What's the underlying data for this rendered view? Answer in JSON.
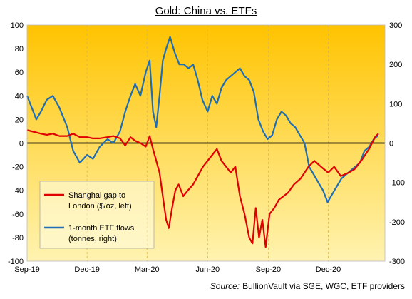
{
  "chart_data": {
    "type": "line",
    "title": "Gold: China vs. ETFs",
    "source": "BullionVault via SGE, WGC, ETF providers",
    "source_prefix": "Source:",
    "x_ticks": [
      "Sep-19",
      "Dec-19",
      "Mar-20",
      "Jun-20",
      "Sep-20",
      "Dec-20"
    ],
    "x_range": [
      "2019-09-01",
      "2021-02-25"
    ],
    "y_left": {
      "ylim": [
        -100,
        100
      ],
      "ticks": [
        -100,
        -80,
        -60,
        -40,
        -20,
        0,
        20,
        40,
        60,
        80,
        100
      ]
    },
    "y_right": {
      "ylim": [
        -300,
        300
      ],
      "ticks": [
        -300,
        -200,
        -100,
        0,
        100,
        200,
        300
      ]
    },
    "legend_placement": "bottom-left",
    "grid": "vertical",
    "background_gradient": [
      "#ffc300",
      "#fff3b0"
    ],
    "series": [
      {
        "name_line1": "Shanghai gap to",
        "name_line2": "London ($/oz, left)",
        "axis": "left",
        "color": "#e00000",
        "points": [
          [
            "2019-09-01",
            11
          ],
          [
            "2019-09-08",
            10
          ],
          [
            "2019-09-15",
            9
          ],
          [
            "2019-09-22",
            8
          ],
          [
            "2019-10-01",
            7
          ],
          [
            "2019-10-10",
            8
          ],
          [
            "2019-10-20",
            6
          ],
          [
            "2019-11-01",
            6
          ],
          [
            "2019-11-10",
            8
          ],
          [
            "2019-11-20",
            5
          ],
          [
            "2019-12-01",
            5
          ],
          [
            "2019-12-10",
            4
          ],
          [
            "2019-12-20",
            4
          ],
          [
            "2020-01-01",
            5
          ],
          [
            "2020-01-10",
            6
          ],
          [
            "2020-01-20",
            4
          ],
          [
            "2020-01-28",
            -2
          ],
          [
            "2020-02-05",
            5
          ],
          [
            "2020-02-12",
            2
          ],
          [
            "2020-02-20",
            0
          ],
          [
            "2020-02-28",
            -3
          ],
          [
            "2020-03-05",
            6
          ],
          [
            "2020-03-10",
            -5
          ],
          [
            "2020-03-15",
            -15
          ],
          [
            "2020-03-20",
            -25
          ],
          [
            "2020-03-25",
            -45
          ],
          [
            "2020-03-30",
            -65
          ],
          [
            "2020-04-03",
            -72
          ],
          [
            "2020-04-08",
            -55
          ],
          [
            "2020-04-13",
            -40
          ],
          [
            "2020-04-18",
            -35
          ],
          [
            "2020-04-25",
            -45
          ],
          [
            "2020-05-02",
            -40
          ],
          [
            "2020-05-10",
            -35
          ],
          [
            "2020-05-17",
            -28
          ],
          [
            "2020-05-25",
            -20
          ],
          [
            "2020-06-01",
            -15
          ],
          [
            "2020-06-08",
            -10
          ],
          [
            "2020-06-15",
            -5
          ],
          [
            "2020-06-22",
            -15
          ],
          [
            "2020-06-29",
            -20
          ],
          [
            "2020-07-06",
            -25
          ],
          [
            "2020-07-13",
            -20
          ],
          [
            "2020-07-20",
            -45
          ],
          [
            "2020-07-27",
            -60
          ],
          [
            "2020-08-03",
            -80
          ],
          [
            "2020-08-08",
            -85
          ],
          [
            "2020-08-13",
            -55
          ],
          [
            "2020-08-18",
            -80
          ],
          [
            "2020-08-23",
            -65
          ],
          [
            "2020-08-28",
            -88
          ],
          [
            "2020-09-03",
            -60
          ],
          [
            "2020-09-10",
            -55
          ],
          [
            "2020-09-17",
            -48
          ],
          [
            "2020-09-24",
            -45
          ],
          [
            "2020-10-01",
            -42
          ],
          [
            "2020-10-10",
            -35
          ],
          [
            "2020-10-20",
            -30
          ],
          [
            "2020-11-01",
            -20
          ],
          [
            "2020-11-10",
            -15
          ],
          [
            "2020-11-20",
            -20
          ],
          [
            "2020-12-01",
            -25
          ],
          [
            "2020-12-10",
            -20
          ],
          [
            "2020-12-20",
            -28
          ],
          [
            "2021-01-01",
            -25
          ],
          [
            "2021-01-10",
            -22
          ],
          [
            "2021-01-20",
            -15
          ],
          [
            "2021-02-01",
            -5
          ],
          [
            "2021-02-10",
            5
          ],
          [
            "2021-02-15",
            8
          ]
        ]
      },
      {
        "name_line1": "1-month ETF flows",
        "name_line2": "(tonnes, right)",
        "axis": "right",
        "color": "#1f6eb5",
        "points": [
          [
            "2019-09-01",
            120
          ],
          [
            "2019-09-08",
            90
          ],
          [
            "2019-09-15",
            60
          ],
          [
            "2019-09-22",
            80
          ],
          [
            "2019-10-01",
            110
          ],
          [
            "2019-10-10",
            120
          ],
          [
            "2019-10-20",
            90
          ],
          [
            "2019-11-01",
            40
          ],
          [
            "2019-11-10",
            -20
          ],
          [
            "2019-11-20",
            -50
          ],
          [
            "2019-12-01",
            -30
          ],
          [
            "2019-12-10",
            -40
          ],
          [
            "2019-12-20",
            -10
          ],
          [
            "2020-01-01",
            10
          ],
          [
            "2020-01-10",
            0
          ],
          [
            "2020-01-20",
            30
          ],
          [
            "2020-01-28",
            80
          ],
          [
            "2020-02-05",
            120
          ],
          [
            "2020-02-12",
            150
          ],
          [
            "2020-02-20",
            120
          ],
          [
            "2020-02-28",
            180
          ],
          [
            "2020-03-05",
            210
          ],
          [
            "2020-03-10",
            80
          ],
          [
            "2020-03-15",
            40
          ],
          [
            "2020-03-20",
            120
          ],
          [
            "2020-03-25",
            210
          ],
          [
            "2020-03-30",
            240
          ],
          [
            "2020-04-05",
            270
          ],
          [
            "2020-04-12",
            230
          ],
          [
            "2020-04-19",
            200
          ],
          [
            "2020-04-26",
            200
          ],
          [
            "2020-05-03",
            190
          ],
          [
            "2020-05-10",
            200
          ],
          [
            "2020-05-17",
            160
          ],
          [
            "2020-05-24",
            110
          ],
          [
            "2020-06-01",
            80
          ],
          [
            "2020-06-08",
            120
          ],
          [
            "2020-06-15",
            100
          ],
          [
            "2020-06-22",
            140
          ],
          [
            "2020-06-29",
            160
          ],
          [
            "2020-07-06",
            170
          ],
          [
            "2020-07-13",
            180
          ],
          [
            "2020-07-20",
            190
          ],
          [
            "2020-07-27",
            170
          ],
          [
            "2020-08-03",
            160
          ],
          [
            "2020-08-10",
            130
          ],
          [
            "2020-08-17",
            60
          ],
          [
            "2020-08-24",
            30
          ],
          [
            "2020-08-31",
            10
          ],
          [
            "2020-09-07",
            20
          ],
          [
            "2020-09-14",
            60
          ],
          [
            "2020-09-21",
            80
          ],
          [
            "2020-09-28",
            70
          ],
          [
            "2020-10-05",
            50
          ],
          [
            "2020-10-12",
            40
          ],
          [
            "2020-10-19",
            20
          ],
          [
            "2020-10-26",
            0
          ],
          [
            "2020-11-02",
            -60
          ],
          [
            "2020-11-09",
            -80
          ],
          [
            "2020-11-16",
            -100
          ],
          [
            "2020-11-23",
            -120
          ],
          [
            "2020-11-30",
            -150
          ],
          [
            "2020-12-07",
            -130
          ],
          [
            "2020-12-14",
            -110
          ],
          [
            "2020-12-21",
            -90
          ],
          [
            "2020-12-28",
            -80
          ],
          [
            "2021-01-04",
            -70
          ],
          [
            "2021-01-11",
            -60
          ],
          [
            "2021-01-18",
            -50
          ],
          [
            "2021-01-25",
            -20
          ],
          [
            "2021-02-01",
            -10
          ],
          [
            "2021-02-08",
            10
          ],
          [
            "2021-02-15",
            20
          ]
        ]
      }
    ]
  }
}
